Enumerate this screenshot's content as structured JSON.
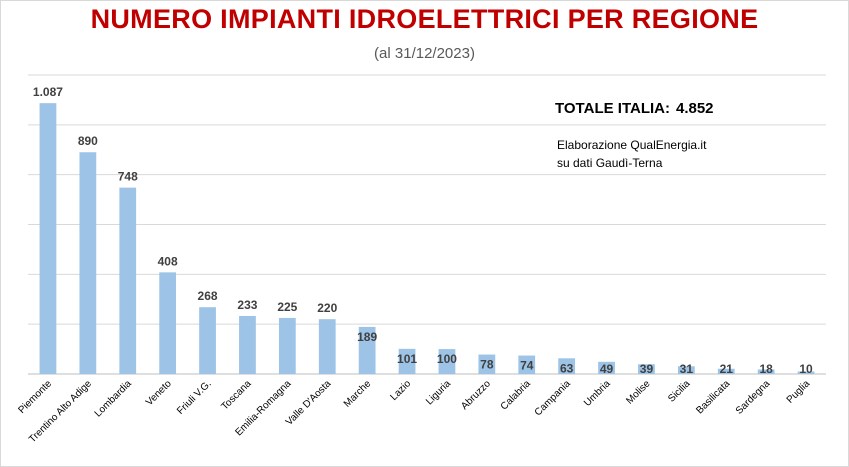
{
  "header": {
    "title": "NUMERO IMPIANTI IDROELETTRICI PER REGIONE",
    "subtitle": "(al 31/12/2023)"
  },
  "annotations": {
    "totale_label": "TOTALE ITALIA:",
    "totale_value": "4.852",
    "source_line1": "Elaborazione QualEnergia.it",
    "source_line2": "su dati Gaudì-Terna"
  },
  "chart_data": {
    "type": "bar",
    "title": "NUMERO IMPIANTI IDROELETTRICI PER REGIONE",
    "subtitle": "(al 31/12/2023)",
    "categories": [
      "Piemonte",
      "Trentino Alto Adige",
      "Lombardia",
      "Veneto",
      "Friuli V.G.",
      "Toscana",
      "Emilia-Romagna",
      "Valle D'Aosta",
      "Marche",
      "Lazio",
      "Liguria",
      "Abruzzo",
      "Calabria",
      "Campania",
      "Umbria",
      "Molise",
      "Sicilia",
      "Basilicata",
      "Sardegna",
      "Puglia"
    ],
    "values": [
      1087,
      890,
      748,
      408,
      268,
      233,
      225,
      220,
      189,
      101,
      100,
      78,
      74,
      63,
      49,
      39,
      31,
      21,
      18,
      10
    ],
    "value_labels": [
      "1.087",
      "890",
      "748",
      "408",
      "268",
      "233",
      "225",
      "220",
      "189",
      "101",
      "100",
      "78",
      "74",
      "63",
      "49",
      "39",
      "31",
      "21",
      "18",
      "10"
    ],
    "ylim": [
      0,
      1200
    ],
    "grid": true,
    "legend": "none",
    "bar_color": "#9dc3e6"
  }
}
